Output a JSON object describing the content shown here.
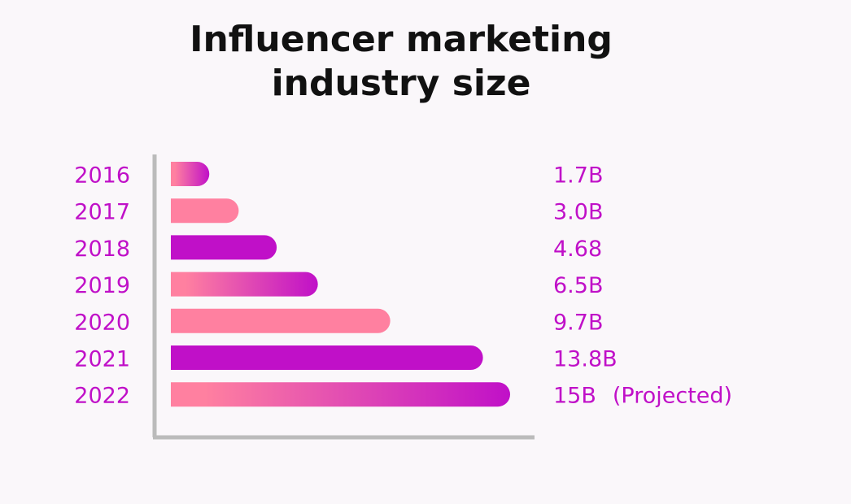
{
  "chart_data": {
    "type": "bar",
    "orientation": "horizontal",
    "title": "Influencer marketing industry size",
    "categories": [
      "2016",
      "2017",
      "2018",
      "2019",
      "2020",
      "2021",
      "2022"
    ],
    "values": [
      1.7,
      3.0,
      4.68,
      6.5,
      9.7,
      13.8,
      15
    ],
    "value_labels": [
      "1.7B",
      "3.0B",
      "4.68",
      "6.5B",
      "9.7B",
      "13.8B",
      "15B"
    ],
    "annotation": "(Projected)",
    "xlim": [
      0,
      15
    ],
    "bar_fills": [
      [
        "#ff80a0",
        "#c010c8"
      ],
      [
        "#ff80a0",
        "#ff80a0"
      ],
      [
        "#c010c8",
        "#c010c8"
      ],
      [
        "#ff80a0",
        "#c010c8"
      ],
      [
        "#ff80a0",
        "#ff80a0"
      ],
      [
        "#c010c8",
        "#c010c8"
      ],
      [
        "#ff80a0",
        "#c010c8"
      ]
    ],
    "label_color": "#c010c8"
  }
}
